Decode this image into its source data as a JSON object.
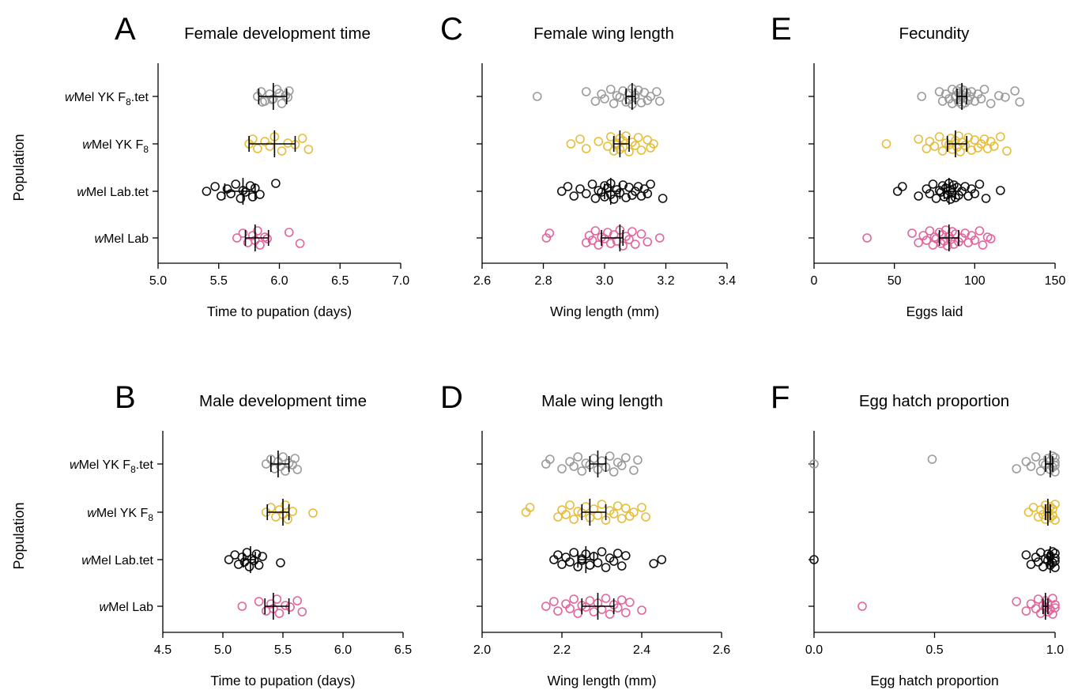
{
  "figure": {
    "population_label": "Population",
    "category_labels": [
      {
        "italic": "w",
        "main": "Mel YK F",
        "sub": "8",
        "tail": ".tet"
      },
      {
        "italic": "w",
        "main": "Mel YK F",
        "sub": "8",
        "tail": ""
      },
      {
        "italic": "w",
        "main": "Mel Lab.tet",
        "sub": "",
        "tail": ""
      },
      {
        "italic": "w",
        "main": "Mel Lab",
        "sub": "",
        "tail": ""
      }
    ],
    "series_colors": [
      "#9a9a9a",
      "#e6bd3a",
      "#111111",
      "#e2649c"
    ]
  },
  "chart_data": [
    {
      "panel": "A",
      "type": "scatter",
      "title": "Female development time",
      "xlabel": "Time to pupation (days)",
      "ylabel": "Population",
      "xlim": [
        5.0,
        7.0
      ],
      "xticks": [
        5.0,
        5.5,
        6.0,
        6.5,
        7.0
      ],
      "tick_decimals": 1,
      "series": [
        {
          "values": [
            5.82,
            5.85,
            5.88,
            5.92,
            5.95,
            5.98,
            6.02,
            6.05,
            6.07,
            6.08,
            5.86,
            6.0,
            5.94
          ],
          "mean": 5.95,
          "ci": [
            5.83,
            6.06
          ]
        },
        {
          "values": [
            5.75,
            5.78,
            5.82,
            5.88,
            5.92,
            5.96,
            6.02,
            6.07,
            6.13,
            6.19,
            6.24
          ],
          "mean": 5.96,
          "ci": [
            5.75,
            6.13
          ]
        },
        {
          "values": [
            5.4,
            5.47,
            5.52,
            5.57,
            5.6,
            5.64,
            5.68,
            5.7,
            5.72,
            5.76,
            5.78,
            5.8,
            5.84,
            5.97
          ],
          "mean": 5.7,
          "ci": [
            5.55,
            5.8
          ]
        },
        {
          "values": [
            5.65,
            5.7,
            5.74,
            5.78,
            5.8,
            5.82,
            5.84,
            5.88,
            5.9,
            6.08,
            6.17
          ],
          "mean": 5.8,
          "ci": [
            5.72,
            5.91
          ]
        }
      ]
    },
    {
      "panel": "C",
      "type": "scatter",
      "title": "Female wing length",
      "xlabel": "Wing length (mm)",
      "ylabel": "",
      "xlim": [
        2.6,
        3.4
      ],
      "xticks": [
        2.6,
        2.8,
        3.0,
        3.2,
        3.4
      ],
      "tick_decimals": 1,
      "series": [
        {
          "values": [
            2.78,
            2.94,
            2.97,
            2.99,
            3.0,
            3.02,
            3.03,
            3.04,
            3.05,
            3.06,
            3.07,
            3.08,
            3.08,
            3.09,
            3.09,
            3.1,
            3.1,
            3.11,
            3.12,
            3.13,
            3.14,
            3.15,
            3.17,
            3.18
          ],
          "mean": 3.09,
          "ci": [
            3.07,
            3.1
          ]
        },
        {
          "values": [
            2.89,
            2.92,
            2.94,
            2.98,
            3.01,
            3.02,
            3.03,
            3.04,
            3.04,
            3.05,
            3.05,
            3.06,
            3.06,
            3.07,
            3.08,
            3.09,
            3.1,
            3.11,
            3.12,
            3.14,
            3.15,
            3.16
          ],
          "mean": 3.05,
          "ci": [
            3.03,
            3.08
          ]
        },
        {
          "values": [
            2.86,
            2.88,
            2.9,
            2.92,
            2.94,
            2.96,
            2.97,
            2.98,
            2.99,
            3.0,
            3.0,
            3.01,
            3.02,
            3.02,
            3.03,
            3.04,
            3.05,
            3.06,
            3.07,
            3.08,
            3.09,
            3.1,
            3.11,
            3.12,
            3.13,
            3.14,
            3.15,
            3.19
          ],
          "mean": 3.02,
          "ci": [
            3.0,
            3.05
          ]
        },
        {
          "values": [
            2.81,
            2.82,
            2.94,
            2.95,
            2.96,
            2.97,
            2.98,
            2.99,
            3.0,
            3.01,
            3.02,
            3.03,
            3.04,
            3.05,
            3.06,
            3.07,
            3.08,
            3.09,
            3.1,
            3.12,
            3.14,
            3.18
          ],
          "mean": 3.05,
          "ci": [
            2.99,
            3.06
          ]
        }
      ]
    },
    {
      "panel": "E",
      "type": "scatter",
      "title": "Fecundity",
      "xlabel": "Eggs laid",
      "ylabel": "",
      "xlim": [
        0,
        150
      ],
      "xticks": [
        0,
        50,
        100,
        150
      ],
      "tick_decimals": 0,
      "series": [
        {
          "values": [
            67,
            78,
            80,
            82,
            84,
            86,
            86,
            88,
            88,
            89,
            90,
            90,
            91,
            91,
            92,
            92,
            93,
            93,
            94,
            95,
            96,
            97,
            98,
            100,
            102,
            104,
            106,
            110,
            115,
            119,
            125,
            128
          ],
          "mean": 92,
          "ci": [
            89,
            95
          ]
        },
        {
          "values": [
            45,
            65,
            70,
            72,
            75,
            78,
            80,
            82,
            84,
            85,
            86,
            88,
            89,
            90,
            91,
            92,
            94,
            96,
            98,
            100,
            102,
            104,
            106,
            108,
            110,
            112,
            116,
            120
          ],
          "mean": 88,
          "ci": [
            83,
            95
          ]
        },
        {
          "values": [
            52,
            55,
            65,
            70,
            72,
            74,
            76,
            78,
            79,
            80,
            81,
            82,
            83,
            84,
            85,
            85,
            86,
            87,
            88,
            89,
            90,
            92,
            94,
            96,
            98,
            100,
            103,
            107,
            116
          ],
          "mean": 84,
          "ci": [
            81,
            88
          ]
        },
        {
          "values": [
            33,
            61,
            65,
            68,
            70,
            72,
            74,
            75,
            76,
            78,
            79,
            80,
            81,
            82,
            83,
            84,
            85,
            86,
            87,
            88,
            90,
            92,
            94,
            96,
            98,
            100,
            103,
            105,
            108,
            110
          ],
          "mean": 84,
          "ci": [
            78,
            90
          ]
        }
      ]
    },
    {
      "panel": "B",
      "type": "scatter",
      "title": "Male development time",
      "xlabel": "Time to pupation (days)",
      "ylabel": "Population",
      "xlim": [
        4.5,
        6.5
      ],
      "xticks": [
        4.5,
        5.0,
        5.5,
        6.0,
        6.5
      ],
      "tick_decimals": 1,
      "series": [
        {
          "values": [
            5.36,
            5.4,
            5.43,
            5.46,
            5.48,
            5.5,
            5.52,
            5.55,
            5.58,
            5.6,
            5.62
          ],
          "mean": 5.46,
          "ci": [
            5.4,
            5.55
          ]
        },
        {
          "values": [
            5.36,
            5.4,
            5.44,
            5.47,
            5.5,
            5.52,
            5.54,
            5.58,
            5.75
          ],
          "mean": 5.5,
          "ci": [
            5.37,
            5.55
          ]
        },
        {
          "values": [
            5.05,
            5.1,
            5.13,
            5.16,
            5.18,
            5.2,
            5.22,
            5.24,
            5.26,
            5.28,
            5.3,
            5.33,
            5.48
          ],
          "mean": 5.23,
          "ci": [
            5.17,
            5.27
          ]
        },
        {
          "values": [
            5.16,
            5.3,
            5.36,
            5.4,
            5.42,
            5.45,
            5.47,
            5.52,
            5.56,
            5.62,
            5.66
          ],
          "mean": 5.42,
          "ci": [
            5.35,
            5.55
          ]
        }
      ]
    },
    {
      "panel": "D",
      "type": "scatter",
      "title": "Male wing length",
      "xlabel": "Wing length (mm)",
      "ylabel": "",
      "xlim": [
        2.0,
        2.6
      ],
      "xticks": [
        2.0,
        2.2,
        2.4,
        2.6
      ],
      "tick_decimals": 1,
      "series": [
        {
          "values": [
            2.16,
            2.17,
            2.2,
            2.22,
            2.23,
            2.24,
            2.25,
            2.26,
            2.27,
            2.28,
            2.29,
            2.3,
            2.31,
            2.32,
            2.33,
            2.34,
            2.35,
            2.36,
            2.38,
            2.39
          ],
          "mean": 2.29,
          "ci": [
            2.27,
            2.31
          ]
        },
        {
          "values": [
            2.11,
            2.12,
            2.19,
            2.2,
            2.21,
            2.22,
            2.23,
            2.24,
            2.25,
            2.26,
            2.27,
            2.28,
            2.29,
            2.3,
            2.31,
            2.32,
            2.33,
            2.34,
            2.35,
            2.36,
            2.37,
            2.38,
            2.4,
            2.41
          ],
          "mean": 2.27,
          "ci": [
            2.25,
            2.31
          ]
        },
        {
          "values": [
            2.18,
            2.19,
            2.2,
            2.21,
            2.22,
            2.23,
            2.24,
            2.25,
            2.25,
            2.26,
            2.27,
            2.28,
            2.29,
            2.3,
            2.31,
            2.32,
            2.33,
            2.34,
            2.35,
            2.36,
            2.43,
            2.45
          ],
          "mean": 2.26,
          "ci": [
            2.24,
            2.28
          ]
        },
        {
          "values": [
            2.16,
            2.18,
            2.19,
            2.21,
            2.22,
            2.23,
            2.24,
            2.25,
            2.26,
            2.27,
            2.28,
            2.29,
            2.3,
            2.31,
            2.32,
            2.33,
            2.34,
            2.35,
            2.36,
            2.37,
            2.4
          ],
          "mean": 2.29,
          "ci": [
            2.25,
            2.33
          ]
        }
      ]
    },
    {
      "panel": "F",
      "type": "scatter",
      "title": "Egg hatch proportion",
      "xlabel": "Egg hatch proportion",
      "ylabel": "",
      "xlim": [
        0.0,
        1.0
      ],
      "xticks": [
        0.0,
        0.5,
        1.0
      ],
      "tick_decimals": 1,
      "series": [
        {
          "values": [
            0.0,
            0.49,
            0.84,
            0.88,
            0.9,
            0.92,
            0.94,
            0.95,
            0.96,
            0.97,
            0.98,
            0.98,
            0.99,
            0.99,
            1.0,
            1.0,
            1.0,
            1.0
          ],
          "mean": 0.98,
          "ci": [
            0.96,
            0.99
          ]
        },
        {
          "values": [
            0.89,
            0.91,
            0.93,
            0.94,
            0.95,
            0.96,
            0.96,
            0.97,
            0.97,
            0.98,
            0.98,
            0.99,
            0.99,
            1.0,
            1.0
          ],
          "mean": 0.97,
          "ci": [
            0.96,
            0.98
          ]
        },
        {
          "values": [
            0.0,
            0.88,
            0.9,
            0.92,
            0.93,
            0.94,
            0.95,
            0.96,
            0.97,
            0.97,
            0.98,
            0.98,
            0.99,
            0.99,
            1.0,
            1.0,
            1.0,
            1.0
          ],
          "mean": 0.98,
          "ci": [
            0.97,
            0.99
          ]
        },
        {
          "values": [
            0.2,
            0.84,
            0.88,
            0.9,
            0.92,
            0.93,
            0.94,
            0.95,
            0.96,
            0.96,
            0.97,
            0.97,
            0.98,
            0.99,
            0.99,
            1.0,
            1.0
          ],
          "mean": 0.96,
          "ci": [
            0.95,
            0.97
          ]
        }
      ]
    }
  ]
}
